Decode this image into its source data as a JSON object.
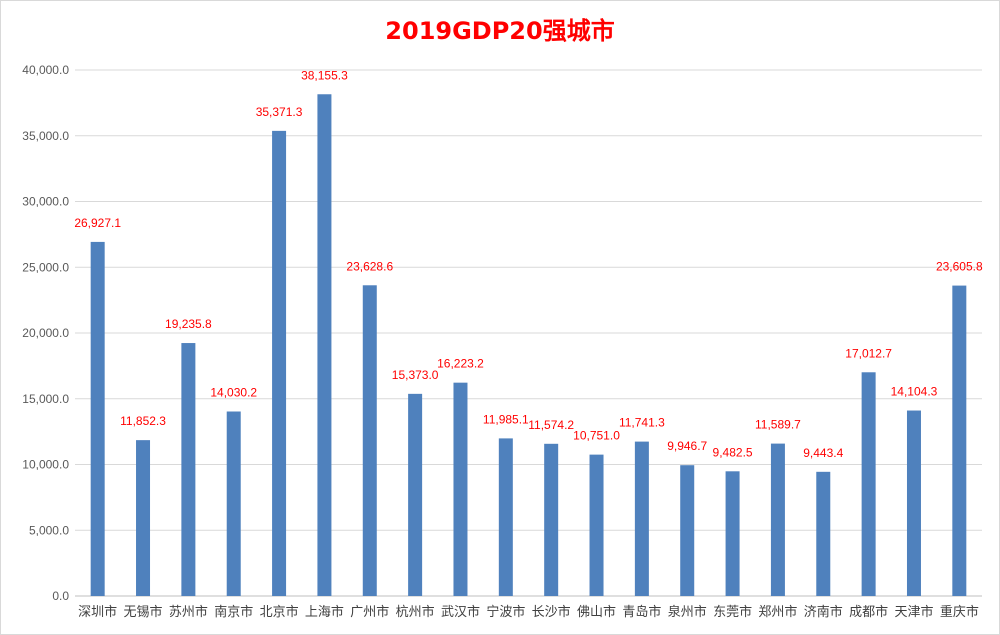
{
  "chart_data": {
    "type": "bar",
    "title": "2019GDP20强城市",
    "xlabel": "",
    "ylabel": "",
    "ylim": [
      0,
      40000
    ],
    "yticks": [
      0,
      5000,
      10000,
      15000,
      20000,
      25000,
      30000,
      35000,
      40000
    ],
    "ytick_labels": [
      "0.0",
      "5,000.0",
      "10,000.0",
      "15,000.0",
      "20,000.0",
      "25,000.0",
      "30,000.0",
      "35,000.0",
      "40,000.0"
    ],
    "grid": true,
    "categories": [
      "深圳市",
      "无锡市",
      "苏州市",
      "南京市",
      "北京市",
      "上海市",
      "广州市",
      "杭州市",
      "武汉市",
      "宁波市",
      "长沙市",
      "佛山市",
      "青岛市",
      "泉州市",
      "东莞市",
      "郑州市",
      "济南市",
      "成都市",
      "天津市",
      "重庆市"
    ],
    "values": [
      26927.1,
      11852.3,
      19235.8,
      14030.2,
      35371.3,
      38155.3,
      23628.6,
      15373.0,
      16223.2,
      11985.1,
      11574.2,
      10751.0,
      11741.3,
      9946.7,
      9482.5,
      11589.7,
      9443.4,
      17012.7,
      14104.3,
      23605.8
    ],
    "data_labels": [
      "26,927.1",
      "11,852.3",
      "19,235.8",
      "14,030.2",
      "35,371.3",
      "38,155.3",
      "23,628.6",
      "15,373.0",
      "16,223.2",
      "11,985.1",
      "11,574.2",
      "10,751.0",
      "11,741.3",
      "9,946.7",
      "9,482.5",
      "11,589.7",
      "9,443.4",
      "17,012.7",
      "14,104.3",
      "23,605.8"
    ],
    "colors": {
      "bar": "#4f81bd",
      "title": "#ff0000",
      "data_label": "#ff0000",
      "grid": "#d9d9d9",
      "axis": "#bfbfbf"
    }
  }
}
